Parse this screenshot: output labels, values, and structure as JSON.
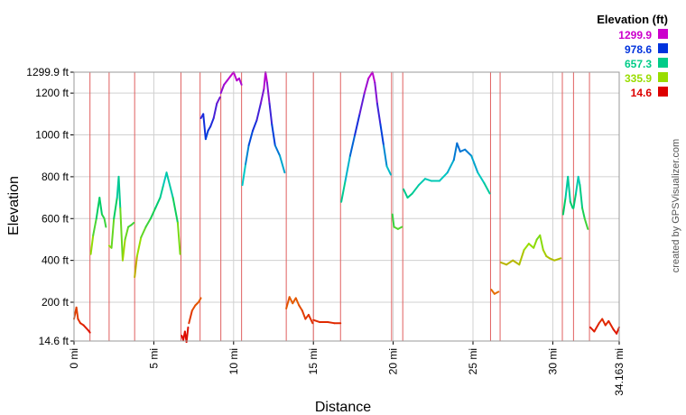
{
  "chart_data": {
    "type": "line",
    "title": "",
    "xlabel": "Distance",
    "ylabel": "Elevation",
    "credit": "created by GPSVisualizer.com",
    "xlim": [
      0,
      34.163
    ],
    "ylim": [
      14.6,
      1299.9
    ],
    "x_ticks": [
      {
        "v": 0,
        "label": "0 mi"
      },
      {
        "v": 5,
        "label": "5 mi"
      },
      {
        "v": 10,
        "label": "10 mi"
      },
      {
        "v": 15,
        "label": "15 mi"
      },
      {
        "v": 20,
        "label": "20 mi"
      },
      {
        "v": 25,
        "label": "25 mi"
      },
      {
        "v": 30,
        "label": "30 mi"
      },
      {
        "v": 34.163,
        "label": "34.163 mi"
      }
    ],
    "y_ticks": [
      {
        "v": 14.6,
        "label": "14.6 ft"
      },
      {
        "v": 200,
        "label": "200 ft"
      },
      {
        "v": 400,
        "label": "400 ft"
      },
      {
        "v": 600,
        "label": "600 ft"
      },
      {
        "v": 800,
        "label": "800 ft"
      },
      {
        "v": 1000,
        "label": "1000 ft"
      },
      {
        "v": 1200,
        "label": "1200 ft"
      },
      {
        "v": 1299.9,
        "label": "1299.9 ft"
      }
    ],
    "grid": true,
    "legend": {
      "title": "Elevation (ft)",
      "placement": "top-right",
      "entries": [
        {
          "label": "1299.9",
          "color": "#cc00cc"
        },
        {
          "label": "978.6",
          "color": "#0033dd"
        },
        {
          "label": "657.3",
          "color": "#00cc88"
        },
        {
          "label": "335.9",
          "color": "#99dd00"
        },
        {
          "label": "14.6",
          "color": "#dd0000"
        }
      ]
    },
    "marker_lines_x": [
      1.0,
      2.2,
      3.8,
      6.7,
      7.9,
      9.2,
      10.5,
      13.3,
      15.0,
      16.7,
      19.9,
      20.6,
      26.1,
      26.7,
      30.6,
      31.3,
      32.3
    ],
    "series": [
      {
        "x": [
          0,
          0.15,
          0.25,
          0.4,
          0.6,
          0.9,
          1.0
        ],
        "y": [
          120,
          175,
          120,
          100,
          90,
          65,
          55
        ]
      },
      {
        "x": [
          1.05,
          1.2,
          1.4,
          1.6,
          1.75,
          1.9,
          2.0
        ],
        "y": [
          430,
          520,
          600,
          700,
          620,
          600,
          560
        ]
      },
      {
        "x": [
          2.2,
          2.35,
          2.5,
          2.7,
          2.8,
          2.9,
          3.05,
          3.2,
          3.4,
          3.6,
          3.75
        ],
        "y": [
          470,
          460,
          600,
          700,
          800,
          650,
          400,
          500,
          560,
          570,
          580
        ]
      },
      {
        "x": [
          3.8,
          3.95,
          4.2,
          4.5,
          4.8,
          5.1,
          5.4,
          5.6,
          5.8,
          6.2,
          6.5,
          6.65
        ],
        "y": [
          320,
          420,
          510,
          560,
          600,
          650,
          700,
          760,
          820,
          700,
          580,
          430
        ]
      },
      {
        "x": [
          6.75,
          6.85,
          6.95,
          7.05,
          7.15
        ],
        "y": [
          40,
          20,
          60,
          10,
          80
        ]
      },
      {
        "x": [
          7.2,
          7.4,
          7.6,
          7.8,
          7.95
        ],
        "y": [
          100,
          160,
          185,
          200,
          220
        ]
      },
      {
        "x": [
          7.95,
          8.1,
          8.25,
          8.4,
          8.55,
          8.75,
          8.95,
          9.15
        ],
        "y": [
          1080,
          1100,
          980,
          1020,
          1040,
          1080,
          1150,
          1180
        ]
      },
      {
        "x": [
          9.2,
          9.4,
          9.6,
          9.8,
          10.0,
          10.2,
          10.35,
          10.5
        ],
        "y": [
          1200,
          1240,
          1260,
          1280,
          1300,
          1260,
          1270,
          1240
        ]
      },
      {
        "x": [
          10.55,
          10.75,
          10.95,
          11.2,
          11.45,
          11.7,
          11.9,
          12.0,
          12.1,
          12.25,
          12.4,
          12.6,
          12.9,
          13.2
        ],
        "y": [
          760,
          860,
          950,
          1020,
          1070,
          1150,
          1220,
          1300,
          1250,
          1150,
          1050,
          950,
          900,
          820
        ]
      },
      {
        "x": [
          13.3,
          13.5,
          13.7,
          13.9,
          14.1,
          14.3,
          14.5,
          14.7,
          14.95
        ],
        "y": [
          170,
          225,
          195,
          220,
          185,
          160,
          120,
          140,
          100
        ]
      },
      {
        "x": [
          15.0,
          15.4,
          15.9,
          16.3,
          16.7
        ],
        "y": [
          115,
          105,
          105,
          100,
          100
        ]
      },
      {
        "x": [
          16.75,
          17.0,
          17.3,
          17.6,
          17.9,
          18.2,
          18.45,
          18.7,
          18.85,
          19.0,
          19.2,
          19.4,
          19.6,
          19.85
        ],
        "y": [
          680,
          780,
          900,
          1000,
          1100,
          1200,
          1270,
          1300,
          1250,
          1150,
          1050,
          950,
          850,
          810
        ]
      },
      {
        "x": [
          19.95,
          20.05,
          20.3,
          20.55
        ],
        "y": [
          620,
          560,
          550,
          560
        ]
      },
      {
        "x": [
          20.65,
          20.9,
          21.2,
          21.6,
          22.0,
          22.4,
          22.9,
          23.4,
          23.8,
          24.0,
          24.2,
          24.5,
          24.9,
          25.3,
          25.7,
          26.05
        ],
        "y": [
          740,
          700,
          720,
          760,
          790,
          780,
          780,
          820,
          880,
          960,
          920,
          930,
          900,
          820,
          770,
          720
        ]
      },
      {
        "x": [
          26.15,
          26.35,
          26.6
        ],
        "y": [
          260,
          240,
          250
        ]
      },
      {
        "x": [
          26.75,
          27.1,
          27.5,
          27.9,
          28.2,
          28.5,
          28.8,
          29.0,
          29.2,
          29.4,
          29.6,
          29.8,
          30.1,
          30.5
        ],
        "y": [
          390,
          380,
          400,
          380,
          450,
          480,
          460,
          500,
          520,
          450,
          420,
          410,
          400,
          410
        ]
      },
      {
        "x": [
          30.65,
          30.8,
          30.95,
          31.1,
          31.25
        ],
        "y": [
          620,
          700,
          800,
          680,
          650
        ]
      },
      {
        "x": [
          31.3,
          31.45,
          31.6,
          31.7,
          31.85,
          32.0,
          32.2
        ],
        "y": [
          650,
          720,
          800,
          760,
          650,
          600,
          550
        ]
      },
      {
        "x": [
          32.35,
          32.6,
          32.9,
          33.1,
          33.3,
          33.5,
          33.8,
          34.0,
          34.16
        ],
        "y": [
          80,
          60,
          100,
          120,
          90,
          110,
          70,
          50,
          80
        ]
      }
    ]
  }
}
